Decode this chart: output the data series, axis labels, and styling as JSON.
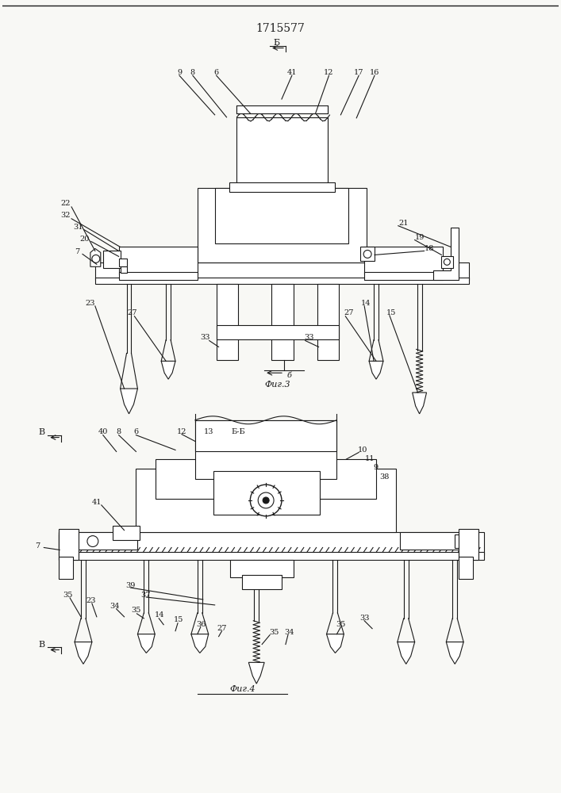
{
  "title": "1715577",
  "bg_color": "#f8f8f5",
  "line_color": "#1a1a1a",
  "fig1_label": "Фиг.3",
  "fig2_label": "Фиг.4"
}
